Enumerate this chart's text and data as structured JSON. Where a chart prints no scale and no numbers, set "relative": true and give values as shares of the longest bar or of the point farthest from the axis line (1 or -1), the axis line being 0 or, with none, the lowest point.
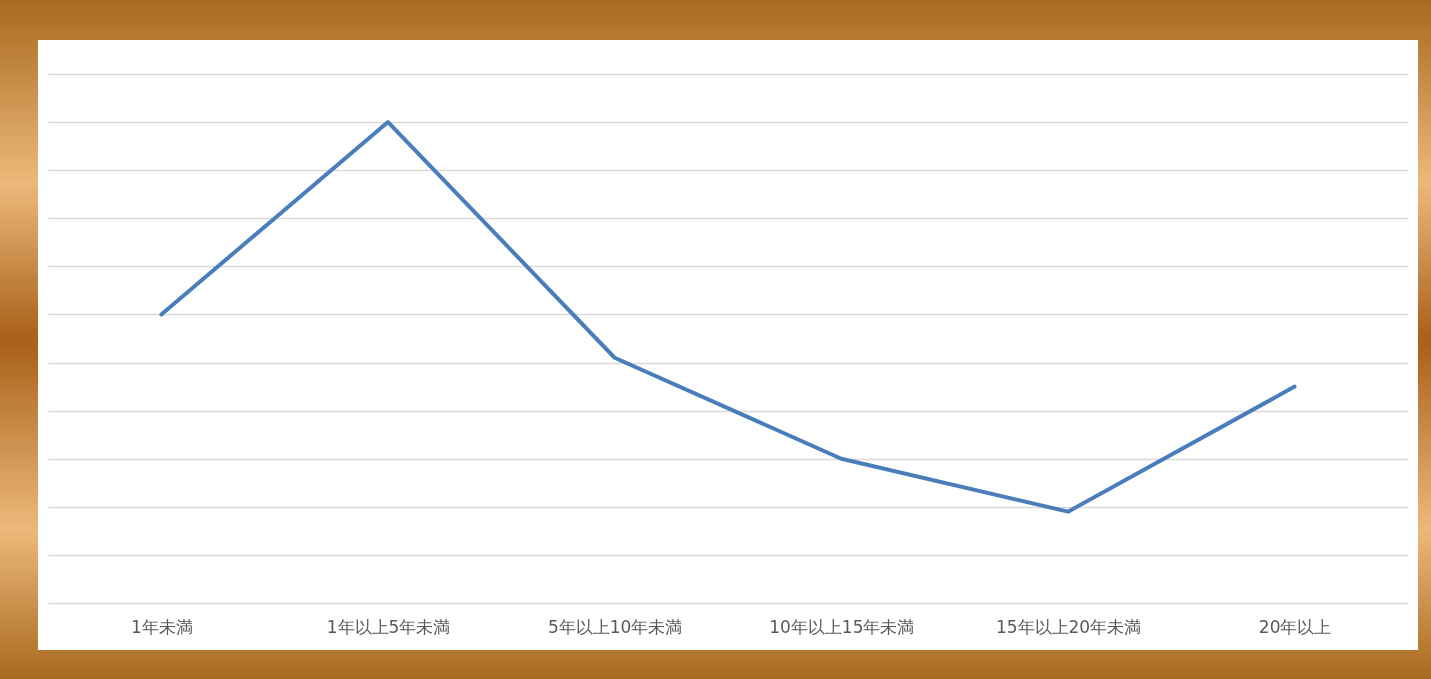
{
  "chart_data": {
    "type": "line",
    "categories": [
      "1年未満",
      "1年以上5年未満",
      "5年以上10年未満",
      "10年以上15年未満",
      "15年以上20年未満",
      "20年以上"
    ],
    "series": [
      {
        "color": "#4a7ebb",
        "values": [
          0.6,
          1,
          0.51,
          0.3,
          0.19,
          0.45
        ]
      }
    ],
    "relative": true,
    "grid": "y",
    "marker": "none",
    "line_style": "solid"
  }
}
